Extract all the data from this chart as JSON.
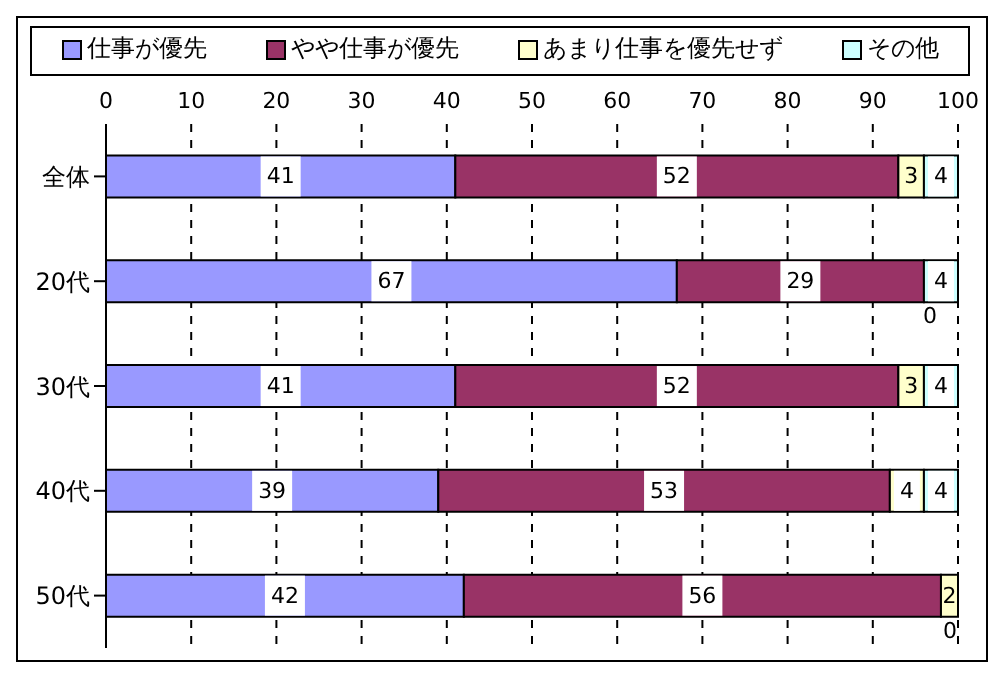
{
  "chart_data": {
    "type": "bar",
    "orientation": "horizontal",
    "stacked": true,
    "categories": [
      "全体",
      "20代",
      "30代",
      "40代",
      "50代"
    ],
    "series": [
      {
        "name": "仕事が優先",
        "color": "#9999ff",
        "values": [
          41,
          67,
          41,
          39,
          42
        ]
      },
      {
        "name": "やや仕事が優先",
        "color": "#993366",
        "values": [
          52,
          29,
          52,
          53,
          56
        ]
      },
      {
        "name": "あまり仕事を優先せず",
        "color": "#ffffcc",
        "values": [
          3,
          0,
          3,
          4,
          2
        ]
      },
      {
        "name": "その他",
        "color": "#ccffff",
        "values": [
          4,
          4,
          4,
          4,
          0
        ]
      }
    ],
    "xlim": [
      0,
      100
    ],
    "xticks": [
      0,
      10,
      20,
      30,
      40,
      50,
      60,
      70,
      80,
      90,
      100
    ],
    "grid": "x",
    "legend": "top",
    "data_labels": true
  }
}
